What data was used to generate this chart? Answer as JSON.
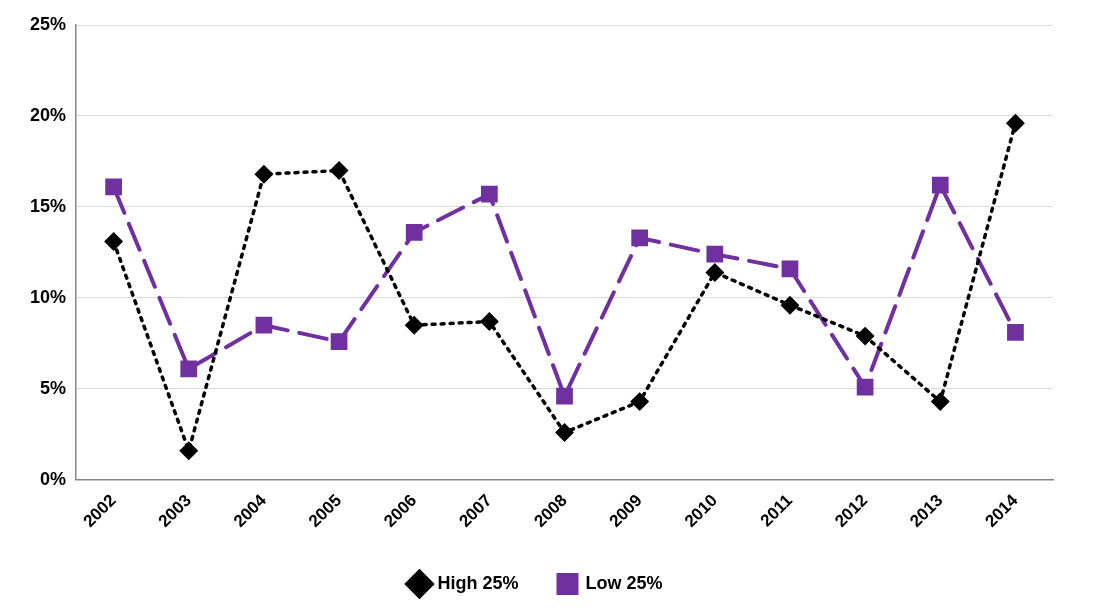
{
  "chart_data": {
    "type": "line",
    "categories": [
      "2002",
      "2003",
      "2004",
      "2005",
      "2006",
      "2007",
      "2008",
      "2009",
      "2010",
      "2011",
      "2012",
      "2013",
      "2014"
    ],
    "series": [
      {
        "name": "High 25%",
        "color": "#000000",
        "marker": "diamond",
        "line_style": "dotted",
        "values": [
          13.1,
          1.6,
          16.8,
          17.0,
          8.5,
          8.7,
          2.6,
          4.3,
          11.4,
          9.6,
          7.9,
          4.3,
          19.6
        ]
      },
      {
        "name": "Low 25%",
        "color": "#7030a0",
        "marker": "square",
        "line_style": "dashed",
        "values": [
          16.1,
          6.1,
          8.5,
          7.6,
          13.6,
          15.7,
          4.6,
          13.3,
          12.4,
          11.6,
          5.1,
          16.2,
          8.1
        ]
      }
    ],
    "ylim": [
      0,
      25
    ],
    "yticks": [
      {
        "value": 0,
        "label": "0%"
      },
      {
        "value": 5,
        "label": "5%"
      },
      {
        "value": 10,
        "label": "10%"
      },
      {
        "value": 15,
        "label": "15%"
      },
      {
        "value": 20,
        "label": "20%"
      },
      {
        "value": 25,
        "label": "25%"
      }
    ],
    "grid": "y",
    "legend": "bottom"
  }
}
